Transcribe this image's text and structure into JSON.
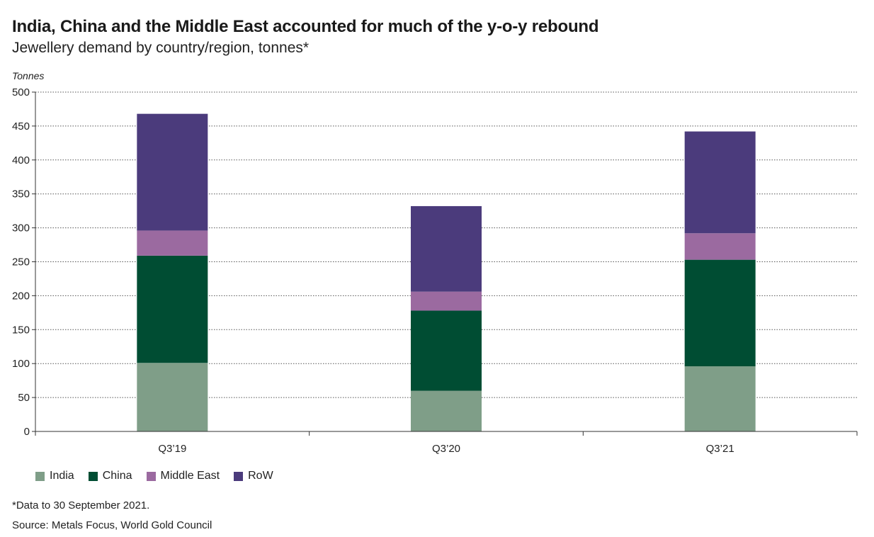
{
  "header": {
    "title": "India, China and the Middle East accounted for much of the y-o-y rebound",
    "subtitle": "Jewellery demand by country/region, tonnes*"
  },
  "footer": {
    "note": "*Data to 30 September 2021.",
    "source": "Source: Metals Focus, World Gold Council"
  },
  "chart_data": {
    "type": "bar",
    "stacked": true,
    "ylabel": "Tonnes",
    "xlabel": "",
    "ylim": [
      0,
      500
    ],
    "yticks": [
      0,
      50,
      100,
      150,
      200,
      250,
      300,
      350,
      400,
      450,
      500
    ],
    "grid": true,
    "legend": "bottom-left",
    "categories": [
      "Q3’19",
      "Q3’20",
      "Q3’21"
    ],
    "series": [
      {
        "name": "India",
        "color": "#7f9e88",
        "values": [
          101,
          60,
          96
        ]
      },
      {
        "name": "China",
        "color": "#004d33",
        "values": [
          158,
          118,
          157
        ]
      },
      {
        "name": "Middle East",
        "color": "#9b6aa0",
        "values": [
          37,
          28,
          39
        ]
      },
      {
        "name": "RoW",
        "color": "#4b3b7c",
        "values": [
          172,
          126,
          150
        ]
      }
    ]
  }
}
